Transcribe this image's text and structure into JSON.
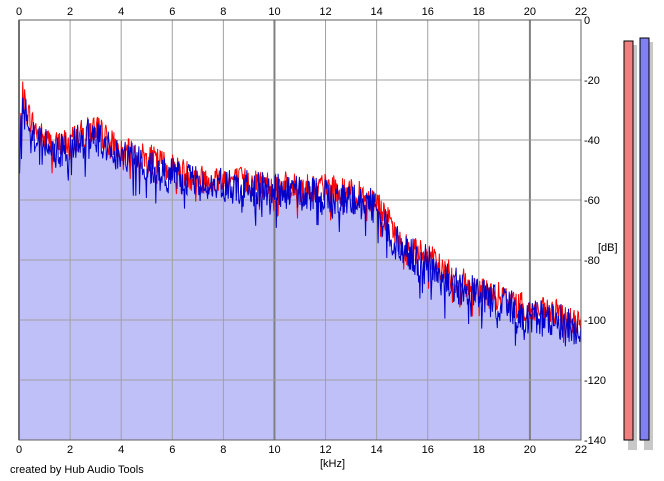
{
  "chart_data": {
    "type": "area",
    "title": "",
    "xlabel": "[kHz]",
    "ylabel": "[dB]",
    "xlim": [
      0,
      22
    ],
    "ylim": [
      -140,
      0
    ],
    "x_ticks": [
      0,
      2,
      4,
      6,
      8,
      10,
      12,
      14,
      16,
      18,
      20,
      22
    ],
    "x_tick_labels": [
      "0",
      "2",
      "4",
      "6",
      "8",
      "10",
      "12",
      "14",
      "16",
      "18",
      "20",
      "22"
    ],
    "y_ticks": [
      0,
      -20,
      -40,
      -60,
      -80,
      -100,
      -120,
      -140
    ],
    "y_tick_labels": [
      "0",
      "-20",
      "-40",
      "-60",
      "-80",
      "-100",
      "-120",
      "-140"
    ],
    "grid": true,
    "colors": {
      "fill": "#c0c0f8",
      "red_series": "#ff0000",
      "blue_series": "#0000cc",
      "grid": "#a0a0a0",
      "grid_major": "#808080",
      "meter_left": "#f08080",
      "meter_right": "#8080f0"
    },
    "envelope": {
      "x": [
        0,
        0.15,
        0.3,
        0.6,
        1.0,
        1.5,
        2.0,
        2.5,
        3.0,
        3.5,
        4.0,
        5.0,
        6.0,
        7.0,
        8.0,
        9.0,
        10.0,
        11.0,
        12.0,
        13.0,
        14.0,
        14.5,
        15.0,
        16.0,
        17.0,
        18.0,
        19.0,
        20.0,
        21.0,
        22.0
      ],
      "y": [
        -46,
        -27,
        -32,
        -38,
        -42,
        -44,
        -42,
        -40,
        -38,
        -42,
        -46,
        -48,
        -51,
        -55,
        -55,
        -56,
        -57,
        -58,
        -58,
        -60,
        -62,
        -70,
        -77,
        -81,
        -88,
        -92,
        -95,
        -99,
        -100,
        -103
      ]
    },
    "series": [
      {
        "values_note": "",
        "color": "red_series",
        "offset_db": 2,
        "amplitude_db": 5
      },
      {
        "values_note": "",
        "color": "blue_series",
        "offset_db": 0,
        "amplitude_db": 6
      }
    ],
    "meters": {
      "left_db": -7,
      "right_db": -6
    }
  },
  "footer": {
    "credit": "created by Hub Audio Tools"
  }
}
